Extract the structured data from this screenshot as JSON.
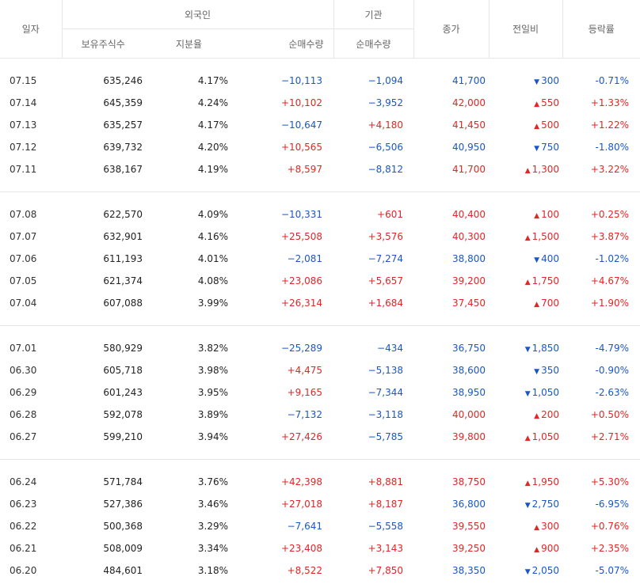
{
  "header": {
    "date": "일자",
    "foreign": "외국인",
    "institution": "기관",
    "holdings": "보유주식수",
    "ratio": "지분율",
    "foreign_net": "순매수량",
    "inst_net": "순매수량",
    "close": "종가",
    "change": "전일비",
    "rate": "등락률"
  },
  "groups": [
    [
      {
        "date": "07.15",
        "hold": "635,246",
        "ratio": "4.17%",
        "fnet": "−10,113",
        "inet": "−1,094",
        "close": "41,700",
        "dir": "dn",
        "chg": "300",
        "rate": "-0.71%"
      },
      {
        "date": "07.14",
        "hold": "645,359",
        "ratio": "4.24%",
        "fnet": "+10,102",
        "inet": "−3,952",
        "close": "42,000",
        "dir": "up",
        "chg": "550",
        "rate": "+1.33%"
      },
      {
        "date": "07.13",
        "hold": "635,257",
        "ratio": "4.17%",
        "fnet": "−10,647",
        "inet": "+4,180",
        "close": "41,450",
        "dir": "up",
        "chg": "500",
        "rate": "+1.22%"
      },
      {
        "date": "07.12",
        "hold": "639,732",
        "ratio": "4.20%",
        "fnet": "+10,565",
        "inet": "−6,506",
        "close": "40,950",
        "dir": "dn",
        "chg": "750",
        "rate": "-1.80%"
      },
      {
        "date": "07.11",
        "hold": "638,167",
        "ratio": "4.19%",
        "fnet": "+8,597",
        "inet": "−8,812",
        "close": "41,700",
        "dir": "up",
        "chg": "1,300",
        "rate": "+3.22%"
      }
    ],
    [
      {
        "date": "07.08",
        "hold": "622,570",
        "ratio": "4.09%",
        "fnet": "−10,331",
        "inet": "+601",
        "close": "40,400",
        "dir": "up",
        "chg": "100",
        "rate": "+0.25%"
      },
      {
        "date": "07.07",
        "hold": "632,901",
        "ratio": "4.16%",
        "fnet": "+25,508",
        "inet": "+3,576",
        "close": "40,300",
        "dir": "up",
        "chg": "1,500",
        "rate": "+3.87%"
      },
      {
        "date": "07.06",
        "hold": "611,193",
        "ratio": "4.01%",
        "fnet": "−2,081",
        "inet": "−7,274",
        "close": "38,800",
        "dir": "dn",
        "chg": "400",
        "rate": "-1.02%"
      },
      {
        "date": "07.05",
        "hold": "621,374",
        "ratio": "4.08%",
        "fnet": "+23,086",
        "inet": "+5,657",
        "close": "39,200",
        "dir": "up",
        "chg": "1,750",
        "rate": "+4.67%"
      },
      {
        "date": "07.04",
        "hold": "607,088",
        "ratio": "3.99%",
        "fnet": "+26,314",
        "inet": "+1,684",
        "close": "37,450",
        "dir": "up",
        "chg": "700",
        "rate": "+1.90%"
      }
    ],
    [
      {
        "date": "07.01",
        "hold": "580,929",
        "ratio": "3.82%",
        "fnet": "−25,289",
        "inet": "−434",
        "close": "36,750",
        "dir": "dn",
        "chg": "1,850",
        "rate": "-4.79%"
      },
      {
        "date": "06.30",
        "hold": "605,718",
        "ratio": "3.98%",
        "fnet": "+4,475",
        "inet": "−5,138",
        "close": "38,600",
        "dir": "dn",
        "chg": "350",
        "rate": "-0.90%"
      },
      {
        "date": "06.29",
        "hold": "601,243",
        "ratio": "3.95%",
        "fnet": "+9,165",
        "inet": "−7,344",
        "close": "38,950",
        "dir": "dn",
        "chg": "1,050",
        "rate": "-2.63%"
      },
      {
        "date": "06.28",
        "hold": "592,078",
        "ratio": "3.89%",
        "fnet": "−7,132",
        "inet": "−3,118",
        "close": "40,000",
        "dir": "up",
        "chg": "200",
        "rate": "+0.50%"
      },
      {
        "date": "06.27",
        "hold": "599,210",
        "ratio": "3.94%",
        "fnet": "+27,426",
        "inet": "−5,785",
        "close": "39,800",
        "dir": "up",
        "chg": "1,050",
        "rate": "+2.71%"
      }
    ],
    [
      {
        "date": "06.24",
        "hold": "571,784",
        "ratio": "3.76%",
        "fnet": "+42,398",
        "inet": "+8,881",
        "close": "38,750",
        "dir": "up",
        "chg": "1,950",
        "rate": "+5.30%"
      },
      {
        "date": "06.23",
        "hold": "527,386",
        "ratio": "3.46%",
        "fnet": "+27,018",
        "inet": "+8,187",
        "close": "36,800",
        "dir": "dn",
        "chg": "2,750",
        "rate": "-6.95%"
      },
      {
        "date": "06.22",
        "hold": "500,368",
        "ratio": "3.29%",
        "fnet": "−7,641",
        "inet": "−5,558",
        "close": "39,550",
        "dir": "up",
        "chg": "300",
        "rate": "+0.76%"
      },
      {
        "date": "06.21",
        "hold": "508,009",
        "ratio": "3.34%",
        "fnet": "+23,408",
        "inet": "+3,143",
        "close": "39,250",
        "dir": "up",
        "chg": "900",
        "rate": "+2.35%"
      },
      {
        "date": "06.20",
        "hold": "484,601",
        "ratio": "3.18%",
        "fnet": "+8,522",
        "inet": "+7,850",
        "close": "38,350",
        "dir": "dn",
        "chg": "2,050",
        "rate": "-5.07%"
      }
    ]
  ],
  "colors": {
    "up": "#e12626",
    "down": "#1b57c4"
  },
  "icons": {
    "up": "triangle-up-icon",
    "down": "triangle-down-icon"
  }
}
